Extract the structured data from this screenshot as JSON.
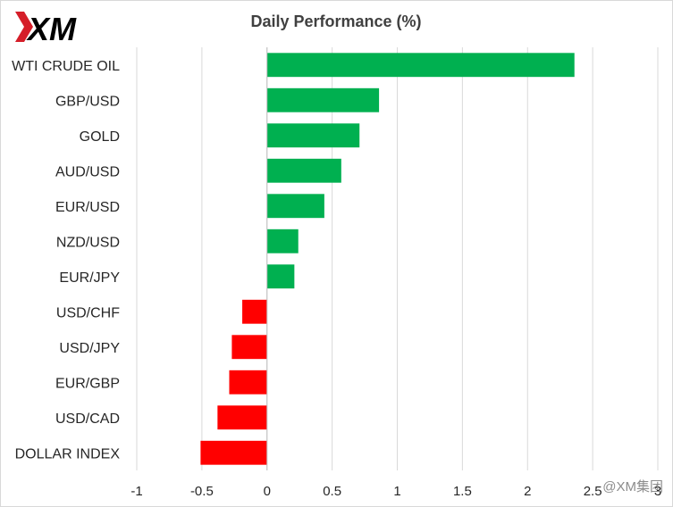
{
  "brand": {
    "logo_text": "XM",
    "watermark": "@XM集团"
  },
  "colors": {
    "positive": "#00b050",
    "negative": "#ff0000",
    "gridline": "#d9d9d9",
    "axis": "#bfbfbf",
    "text": "#262626"
  },
  "chart_data": {
    "type": "bar",
    "orientation": "horizontal",
    "title": "Daily Performance  (%)",
    "categories": [
      "WTI CRUDE OIL",
      "GBP/USD",
      "GOLD",
      "AUD/USD",
      "EUR/USD",
      "NZD/USD",
      "EUR/JPY",
      "USD/CHF",
      "USD/JPY",
      "EUR/GBP",
      "USD/CAD",
      "DOLLAR INDEX"
    ],
    "values": [
      2.36,
      0.86,
      0.71,
      0.57,
      0.44,
      0.24,
      0.21,
      -0.19,
      -0.27,
      -0.29,
      -0.38,
      -0.51
    ],
    "xlim": [
      -1,
      3
    ],
    "xticks": [
      -1,
      -0.5,
      0,
      0.5,
      1,
      1.5,
      2,
      2.5,
      3
    ],
    "xtick_labels": [
      "-1",
      "-0.5",
      "0",
      "0.5",
      "1",
      "1.5",
      "2",
      "2.5",
      "3"
    ],
    "xlabel": "",
    "ylabel": "",
    "grid": "vertical",
    "legend": "none"
  }
}
